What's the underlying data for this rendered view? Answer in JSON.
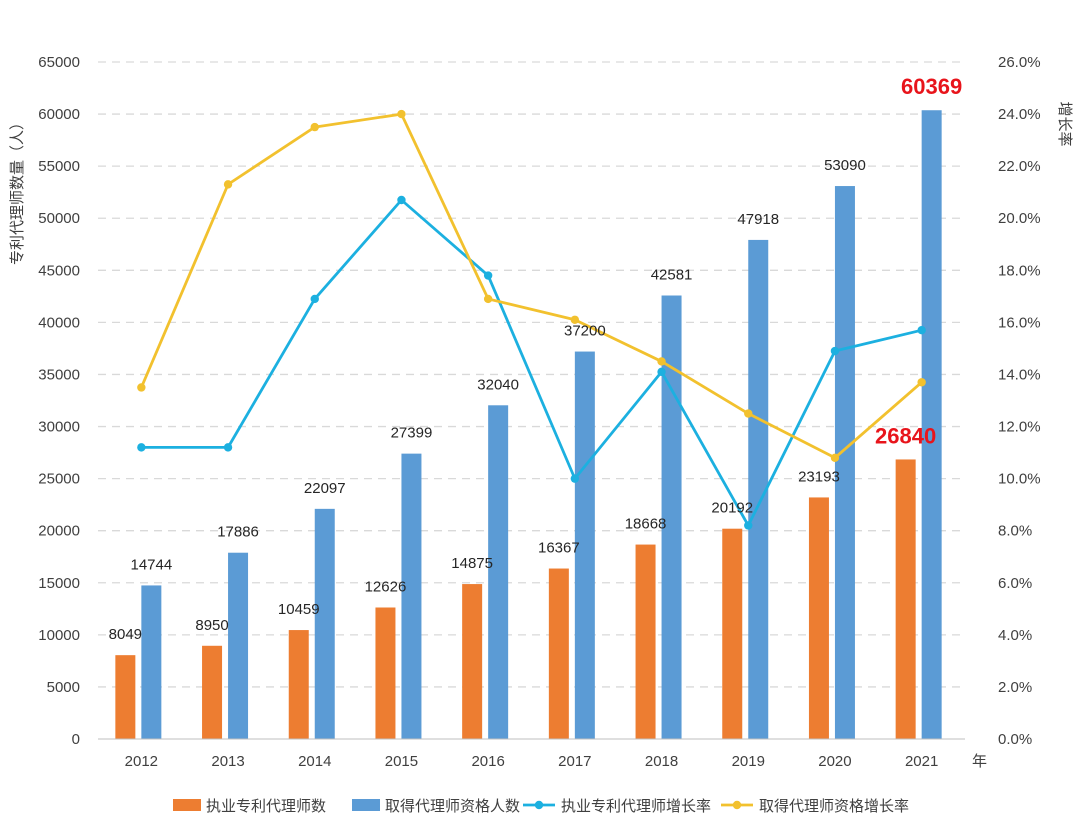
{
  "chart_data": {
    "type": "bar",
    "categories": [
      "2012",
      "2013",
      "2014",
      "2015",
      "2016",
      "2017",
      "2018",
      "2019",
      "2020",
      "2021"
    ],
    "x_unit": "年",
    "ylabel_left": "专利代理师数量（人）",
    "ylabel_right": "增长率",
    "ylim_left": [
      0,
      65000
    ],
    "ylim_right": [
      0.0,
      26.0
    ],
    "yticks_left": [
      "0",
      "5000",
      "10000",
      "15000",
      "20000",
      "25000",
      "30000",
      "35000",
      "40000",
      "45000",
      "50000",
      "55000",
      "60000",
      "65000"
    ],
    "yticks_right": [
      "0.0%",
      "2.0%",
      "4.0%",
      "6.0%",
      "8.0%",
      "10.0%",
      "12.0%",
      "14.0%",
      "16.0%",
      "18.0%",
      "20.0%",
      "22.0%",
      "24.0%",
      "26.0%"
    ],
    "grid": true,
    "legend_position": "bottom",
    "bar_series": [
      {
        "name": "执业专利代理师数",
        "color": "#ED7D31",
        "values": [
          8049,
          8950,
          10459,
          12626,
          14875,
          16367,
          18668,
          20192,
          23193,
          26840
        ],
        "labels": [
          "8049",
          "8950",
          "10459",
          "12626",
          "14875",
          "16367",
          "18668",
          "20192",
          "23193",
          "26840"
        ]
      },
      {
        "name": "取得代理师资格人数",
        "color": "#5B9BD5",
        "values": [
          14744,
          17886,
          22097,
          27399,
          32040,
          37200,
          42581,
          47918,
          53090,
          60369
        ],
        "labels": [
          "14744",
          "17886",
          "22097",
          "27399",
          "32040",
          "37200",
          "42581",
          "47918",
          "53090",
          "60369"
        ]
      }
    ],
    "line_series": [
      {
        "name": "执业专利代理师增长率",
        "color": "#1CB0E0",
        "axis": "right",
        "values": [
          11.2,
          11.2,
          16.9,
          20.7,
          17.8,
          10.0,
          14.1,
          8.2,
          14.9,
          15.7
        ]
      },
      {
        "name": "取得代理师资格增长率",
        "color": "#F2C12E",
        "axis": "right",
        "values": [
          13.5,
          21.3,
          23.5,
          24.0,
          16.9,
          16.1,
          14.5,
          12.5,
          10.8,
          13.7
        ]
      }
    ],
    "highlight_color": "#E8141B",
    "highlighted_labels": [
      "26840",
      "60369"
    ]
  }
}
